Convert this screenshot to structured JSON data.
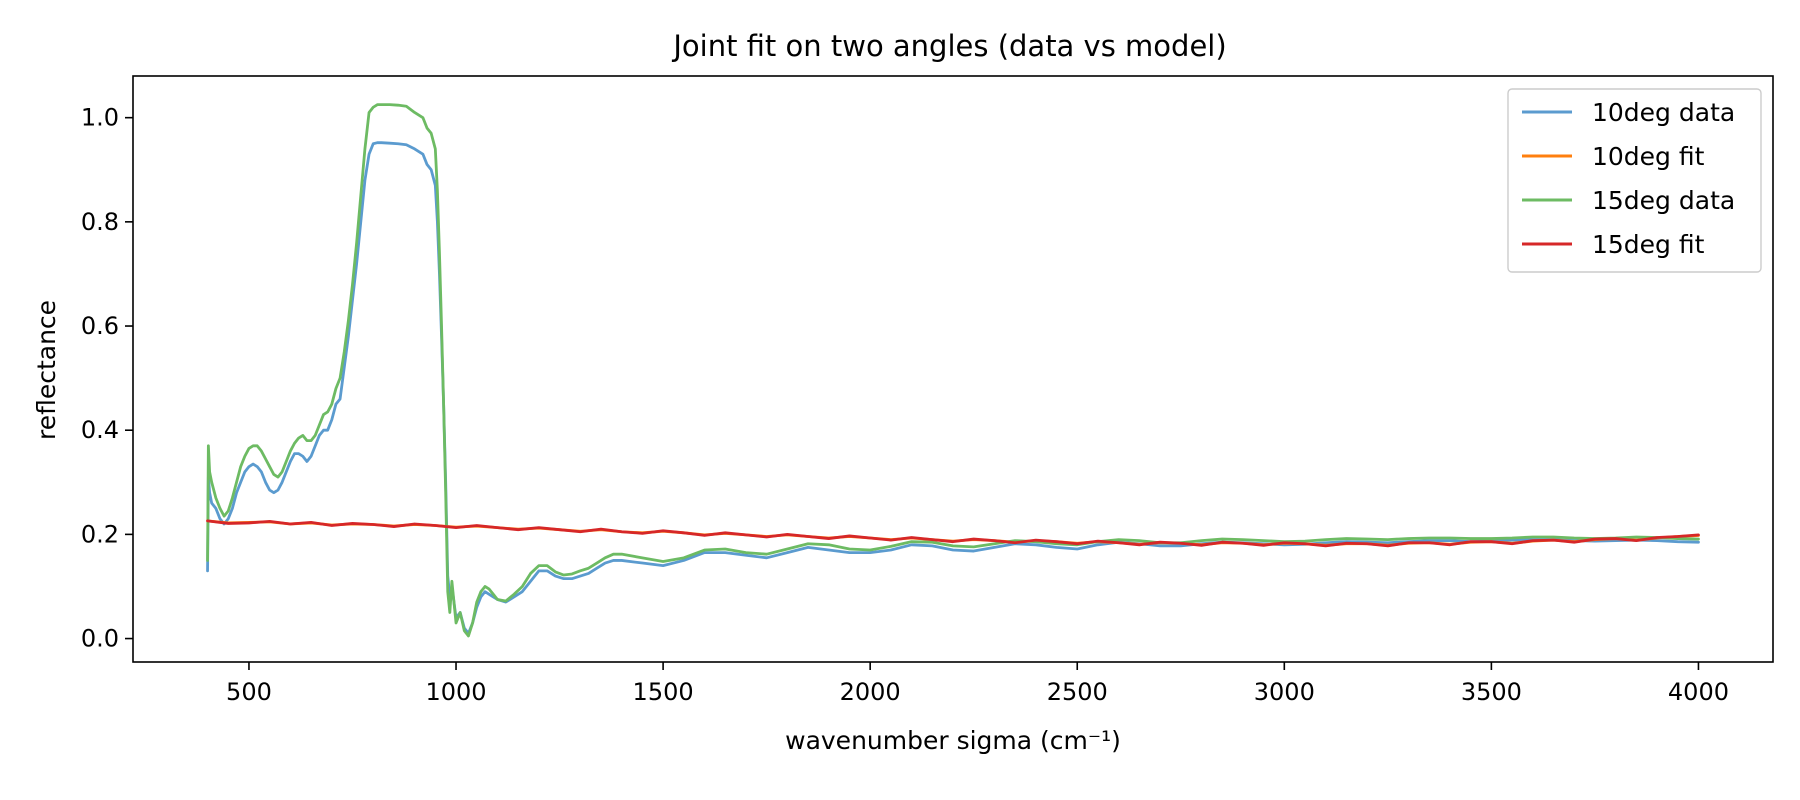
{
  "chart_data": {
    "type": "line",
    "title": "Joint fit on two angles (data vs model)",
    "xlabel": "wavenumber sigma (cm⁻¹)",
    "ylabel": "reflectance",
    "xlim": [
      220,
      4180
    ],
    "ylim": [
      -0.045,
      1.08
    ],
    "xticks": [
      500,
      1000,
      1500,
      2000,
      2500,
      3000,
      3500,
      4000
    ],
    "yticks": [
      0.0,
      0.2,
      0.4,
      0.6,
      0.8,
      1.0
    ],
    "xtick_labels": [
      "500",
      "1000",
      "1500",
      "2000",
      "2500",
      "3000",
      "3500",
      "4000"
    ],
    "ytick_labels": [
      "0.0",
      "0.2",
      "0.4",
      "0.6",
      "0.8",
      "1.0"
    ],
    "grid": false,
    "legend_position": "top-right",
    "series": [
      {
        "name": "10deg data",
        "color": "#5b9bcf",
        "x": [
          400,
          402,
          405,
          410,
          420,
          430,
          440,
          450,
          460,
          470,
          480,
          490,
          500,
          510,
          520,
          530,
          540,
          550,
          560,
          570,
          580,
          590,
          600,
          610,
          620,
          630,
          640,
          650,
          660,
          670,
          680,
          690,
          700,
          710,
          720,
          730,
          740,
          750,
          760,
          770,
          780,
          790,
          800,
          810,
          820,
          840,
          860,
          880,
          900,
          920,
          930,
          940,
          950,
          955,
          960,
          965,
          970,
          975,
          980,
          985,
          990,
          1000,
          1010,
          1020,
          1030,
          1040,
          1050,
          1060,
          1070,
          1080,
          1090,
          1100,
          1120,
          1140,
          1160,
          1180,
          1200,
          1220,
          1240,
          1260,
          1280,
          1300,
          1320,
          1340,
          1360,
          1380,
          1400,
          1450,
          1500,
          1550,
          1600,
          1650,
          1700,
          1750,
          1800,
          1850,
          1900,
          1950,
          2000,
          2050,
          2100,
          2150,
          2200,
          2250,
          2300,
          2350,
          2400,
          2450,
          2500,
          2550,
          2600,
          2650,
          2700,
          2750,
          2800,
          2850,
          2900,
          2950,
          3000,
          3050,
          3100,
          3150,
          3200,
          3250,
          3300,
          3350,
          3400,
          3450,
          3500,
          3550,
          3600,
          3650,
          3700,
          3750,
          3800,
          3850,
          3900,
          3950,
          4000
        ],
        "y": [
          0.13,
          0.31,
          0.28,
          0.26,
          0.25,
          0.23,
          0.22,
          0.23,
          0.25,
          0.28,
          0.3,
          0.32,
          0.33,
          0.335,
          0.33,
          0.32,
          0.3,
          0.285,
          0.28,
          0.285,
          0.3,
          0.32,
          0.34,
          0.355,
          0.355,
          0.35,
          0.34,
          0.35,
          0.37,
          0.39,
          0.4,
          0.4,
          0.42,
          0.45,
          0.46,
          0.52,
          0.58,
          0.65,
          0.72,
          0.8,
          0.88,
          0.93,
          0.95,
          0.952,
          0.952,
          0.951,
          0.95,
          0.948,
          0.94,
          0.93,
          0.91,
          0.9,
          0.87,
          0.8,
          0.7,
          0.58,
          0.45,
          0.3,
          0.12,
          0.08,
          0.1,
          0.04,
          0.05,
          0.02,
          0.01,
          0.03,
          0.06,
          0.08,
          0.09,
          0.085,
          0.08,
          0.075,
          0.07,
          0.08,
          0.09,
          0.11,
          0.13,
          0.13,
          0.12,
          0.115,
          0.115,
          0.12,
          0.125,
          0.135,
          0.145,
          0.15,
          0.15,
          0.145,
          0.14,
          0.15,
          0.165,
          0.165,
          0.16,
          0.155,
          0.165,
          0.175,
          0.17,
          0.165,
          0.165,
          0.17,
          0.18,
          0.178,
          0.17,
          0.168,
          0.175,
          0.182,
          0.18,
          0.175,
          0.172,
          0.18,
          0.185,
          0.182,
          0.178,
          0.178,
          0.182,
          0.185,
          0.184,
          0.182,
          0.18,
          0.181,
          0.184,
          0.186,
          0.185,
          0.184,
          0.186,
          0.188,
          0.188,
          0.186,
          0.187,
          0.189,
          0.19,
          0.19,
          0.188,
          0.187,
          0.188,
          0.189,
          0.188,
          0.186,
          0.185
        ]
      },
      {
        "name": "10deg fit",
        "color": "#ff7f0e",
        "x": [
          400,
          450,
          500,
          550,
          600,
          650,
          700,
          750,
          800,
          850,
          900,
          950,
          1000,
          1050,
          1100,
          1150,
          1200,
          1250,
          1300,
          1350,
          1400,
          1450,
          1500,
          1550,
          1600,
          1650,
          1700,
          1750,
          1800,
          1850,
          1900,
          1950,
          2000,
          2050,
          2100,
          2150,
          2200,
          2250,
          2300,
          2350,
          2400,
          2450,
          2500,
          2550,
          2600,
          2650,
          2700,
          2750,
          2800,
          2850,
          2900,
          2950,
          3000,
          3050,
          3100,
          3150,
          3200,
          3250,
          3300,
          3350,
          3400,
          3450,
          3500,
          3550,
          3600,
          3650,
          3700,
          3750,
          3800,
          3850,
          3900,
          3950,
          4000
        ],
        "y": [
          0.226,
          0.222,
          0.223,
          0.224,
          0.22,
          0.222,
          0.218,
          0.22,
          0.219,
          0.216,
          0.219,
          0.217,
          0.214,
          0.216,
          0.213,
          0.21,
          0.212,
          0.209,
          0.206,
          0.209,
          0.205,
          0.203,
          0.206,
          0.203,
          0.199,
          0.202,
          0.199,
          0.196,
          0.199,
          0.196,
          0.193,
          0.196,
          0.193,
          0.19,
          0.193,
          0.19,
          0.187,
          0.19,
          0.188,
          0.185,
          0.188,
          0.186,
          0.183,
          0.186,
          0.184,
          0.181,
          0.184,
          0.183,
          0.18,
          0.184,
          0.183,
          0.18,
          0.183,
          0.182,
          0.179,
          0.182,
          0.182,
          0.179,
          0.183,
          0.184,
          0.181,
          0.185,
          0.186,
          0.183,
          0.187,
          0.189,
          0.186,
          0.19,
          0.192,
          0.189,
          0.193,
          0.196,
          0.198
        ]
      },
      {
        "name": "15deg data",
        "color": "#6dbb63",
        "x": [
          400,
          402,
          405,
          410,
          420,
          430,
          440,
          450,
          460,
          470,
          480,
          490,
          500,
          510,
          520,
          530,
          540,
          550,
          560,
          570,
          580,
          590,
          600,
          610,
          620,
          630,
          640,
          650,
          660,
          670,
          680,
          690,
          700,
          710,
          720,
          730,
          740,
          750,
          760,
          770,
          780,
          790,
          800,
          810,
          820,
          840,
          860,
          880,
          900,
          920,
          930,
          940,
          950,
          955,
          960,
          965,
          970,
          975,
          980,
          985,
          990,
          1000,
          1010,
          1020,
          1030,
          1040,
          1050,
          1060,
          1070,
          1080,
          1090,
          1100,
          1120,
          1140,
          1160,
          1180,
          1200,
          1220,
          1240,
          1260,
          1280,
          1300,
          1320,
          1340,
          1360,
          1380,
          1400,
          1450,
          1500,
          1550,
          1600,
          1650,
          1700,
          1750,
          1800,
          1850,
          1900,
          1950,
          2000,
          2050,
          2100,
          2150,
          2200,
          2250,
          2300,
          2350,
          2400,
          2450,
          2500,
          2550,
          2600,
          2650,
          2700,
          2750,
          2800,
          2850,
          2900,
          2950,
          3000,
          3050,
          3100,
          3150,
          3200,
          3250,
          3300,
          3350,
          3400,
          3450,
          3500,
          3550,
          3600,
          3650,
          3700,
          3750,
          3800,
          3850,
          3900,
          3950,
          4000
        ],
        "y": [
          0.15,
          0.37,
          0.32,
          0.3,
          0.27,
          0.25,
          0.235,
          0.245,
          0.27,
          0.3,
          0.33,
          0.35,
          0.365,
          0.37,
          0.37,
          0.36,
          0.345,
          0.33,
          0.315,
          0.31,
          0.32,
          0.34,
          0.36,
          0.375,
          0.385,
          0.39,
          0.38,
          0.38,
          0.39,
          0.41,
          0.43,
          0.435,
          0.45,
          0.48,
          0.5,
          0.55,
          0.61,
          0.68,
          0.76,
          0.85,
          0.94,
          1.01,
          1.02,
          1.025,
          1.025,
          1.025,
          1.024,
          1.022,
          1.01,
          1.0,
          0.98,
          0.97,
          0.94,
          0.86,
          0.74,
          0.6,
          0.45,
          0.28,
          0.09,
          0.05,
          0.11,
          0.03,
          0.05,
          0.015,
          0.005,
          0.03,
          0.07,
          0.09,
          0.1,
          0.095,
          0.085,
          0.075,
          0.072,
          0.085,
          0.1,
          0.125,
          0.14,
          0.14,
          0.128,
          0.122,
          0.124,
          0.13,
          0.135,
          0.145,
          0.155,
          0.162,
          0.162,
          0.155,
          0.148,
          0.155,
          0.17,
          0.172,
          0.165,
          0.162,
          0.172,
          0.182,
          0.18,
          0.172,
          0.17,
          0.177,
          0.186,
          0.185,
          0.178,
          0.176,
          0.182,
          0.188,
          0.186,
          0.182,
          0.18,
          0.186,
          0.19,
          0.188,
          0.184,
          0.184,
          0.188,
          0.191,
          0.19,
          0.188,
          0.186,
          0.187,
          0.19,
          0.192,
          0.191,
          0.19,
          0.192,
          0.193,
          0.193,
          0.192,
          0.192,
          0.193,
          0.195,
          0.195,
          0.193,
          0.192,
          0.193,
          0.195,
          0.194,
          0.192,
          0.191
        ]
      },
      {
        "name": "15deg fit",
        "color": "#d62728",
        "x": [
          400,
          450,
          500,
          550,
          600,
          650,
          700,
          750,
          800,
          850,
          900,
          950,
          1000,
          1050,
          1100,
          1150,
          1200,
          1250,
          1300,
          1350,
          1400,
          1450,
          1500,
          1550,
          1600,
          1650,
          1700,
          1750,
          1800,
          1850,
          1900,
          1950,
          2000,
          2050,
          2100,
          2150,
          2200,
          2250,
          2300,
          2350,
          2400,
          2450,
          2500,
          2550,
          2600,
          2650,
          2700,
          2750,
          2800,
          2850,
          2900,
          2950,
          3000,
          3050,
          3100,
          3150,
          3200,
          3250,
          3300,
          3350,
          3400,
          3450,
          3500,
          3550,
          3600,
          3650,
          3700,
          3750,
          3800,
          3850,
          3900,
          3950,
          4000
        ],
        "y": [
          0.226,
          0.221,
          0.222,
          0.225,
          0.22,
          0.223,
          0.217,
          0.221,
          0.219,
          0.215,
          0.22,
          0.217,
          0.213,
          0.217,
          0.213,
          0.209,
          0.213,
          0.209,
          0.205,
          0.21,
          0.205,
          0.202,
          0.207,
          0.203,
          0.198,
          0.203,
          0.199,
          0.195,
          0.2,
          0.196,
          0.192,
          0.197,
          0.193,
          0.189,
          0.194,
          0.19,
          0.186,
          0.191,
          0.188,
          0.184,
          0.189,
          0.186,
          0.182,
          0.187,
          0.184,
          0.18,
          0.185,
          0.183,
          0.179,
          0.185,
          0.183,
          0.179,
          0.184,
          0.182,
          0.178,
          0.183,
          0.182,
          0.178,
          0.184,
          0.184,
          0.18,
          0.186,
          0.186,
          0.182,
          0.188,
          0.189,
          0.185,
          0.191,
          0.192,
          0.188,
          0.194,
          0.196,
          0.199
        ]
      }
    ]
  }
}
